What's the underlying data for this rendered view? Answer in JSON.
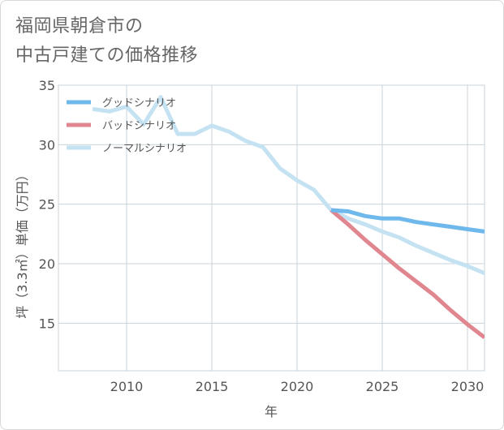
{
  "title": {
    "line1": "福岡県朝倉市の",
    "line2": "中古戸建ての価格推移"
  },
  "chart_data": {
    "type": "line",
    "xlabel": "年",
    "ylabel": "坪（3.3㎡）単価（万円）",
    "xlim": [
      2006,
      2031
    ],
    "ylim": [
      11,
      35
    ],
    "xticks": [
      2010,
      2015,
      2020,
      2025,
      2030
    ],
    "yticks": [
      15,
      20,
      25,
      30,
      35
    ],
    "grid": true,
    "legend_position": "top-left",
    "series": [
      {
        "name": "グッドシナリオ",
        "color": "#6fb8ec",
        "x": [
          2022,
          2023,
          2024,
          2025,
          2026,
          2027,
          2028,
          2029,
          2030,
          2031
        ],
        "y": [
          24.5,
          24.4,
          24.0,
          23.8,
          23.8,
          23.5,
          23.3,
          23.1,
          22.9,
          22.7
        ]
      },
      {
        "name": "バッドシナリオ",
        "color": "#e0868f",
        "x": [
          2022,
          2023,
          2024,
          2025,
          2026,
          2027,
          2028,
          2029,
          2030,
          2031
        ],
        "y": [
          24.5,
          23.3,
          22.0,
          20.8,
          19.6,
          18.5,
          17.4,
          16.1,
          14.9,
          13.8
        ]
      },
      {
        "name": "ノーマルシナリオ",
        "color": "#c4e2f2",
        "x": [
          2008,
          2009,
          2010,
          2011,
          2012,
          2013,
          2014,
          2015,
          2016,
          2017,
          2018,
          2019,
          2020,
          2021,
          2022,
          2023,
          2024,
          2025,
          2026,
          2027,
          2028,
          2029,
          2030,
          2031
        ],
        "y": [
          33.0,
          32.8,
          33.2,
          31.7,
          34.0,
          30.9,
          30.9,
          31.6,
          31.1,
          30.3,
          29.8,
          28.0,
          27.0,
          26.2,
          24.5,
          23.8,
          23.3,
          22.7,
          22.2,
          21.5,
          20.9,
          20.3,
          19.8,
          19.2
        ]
      }
    ]
  }
}
